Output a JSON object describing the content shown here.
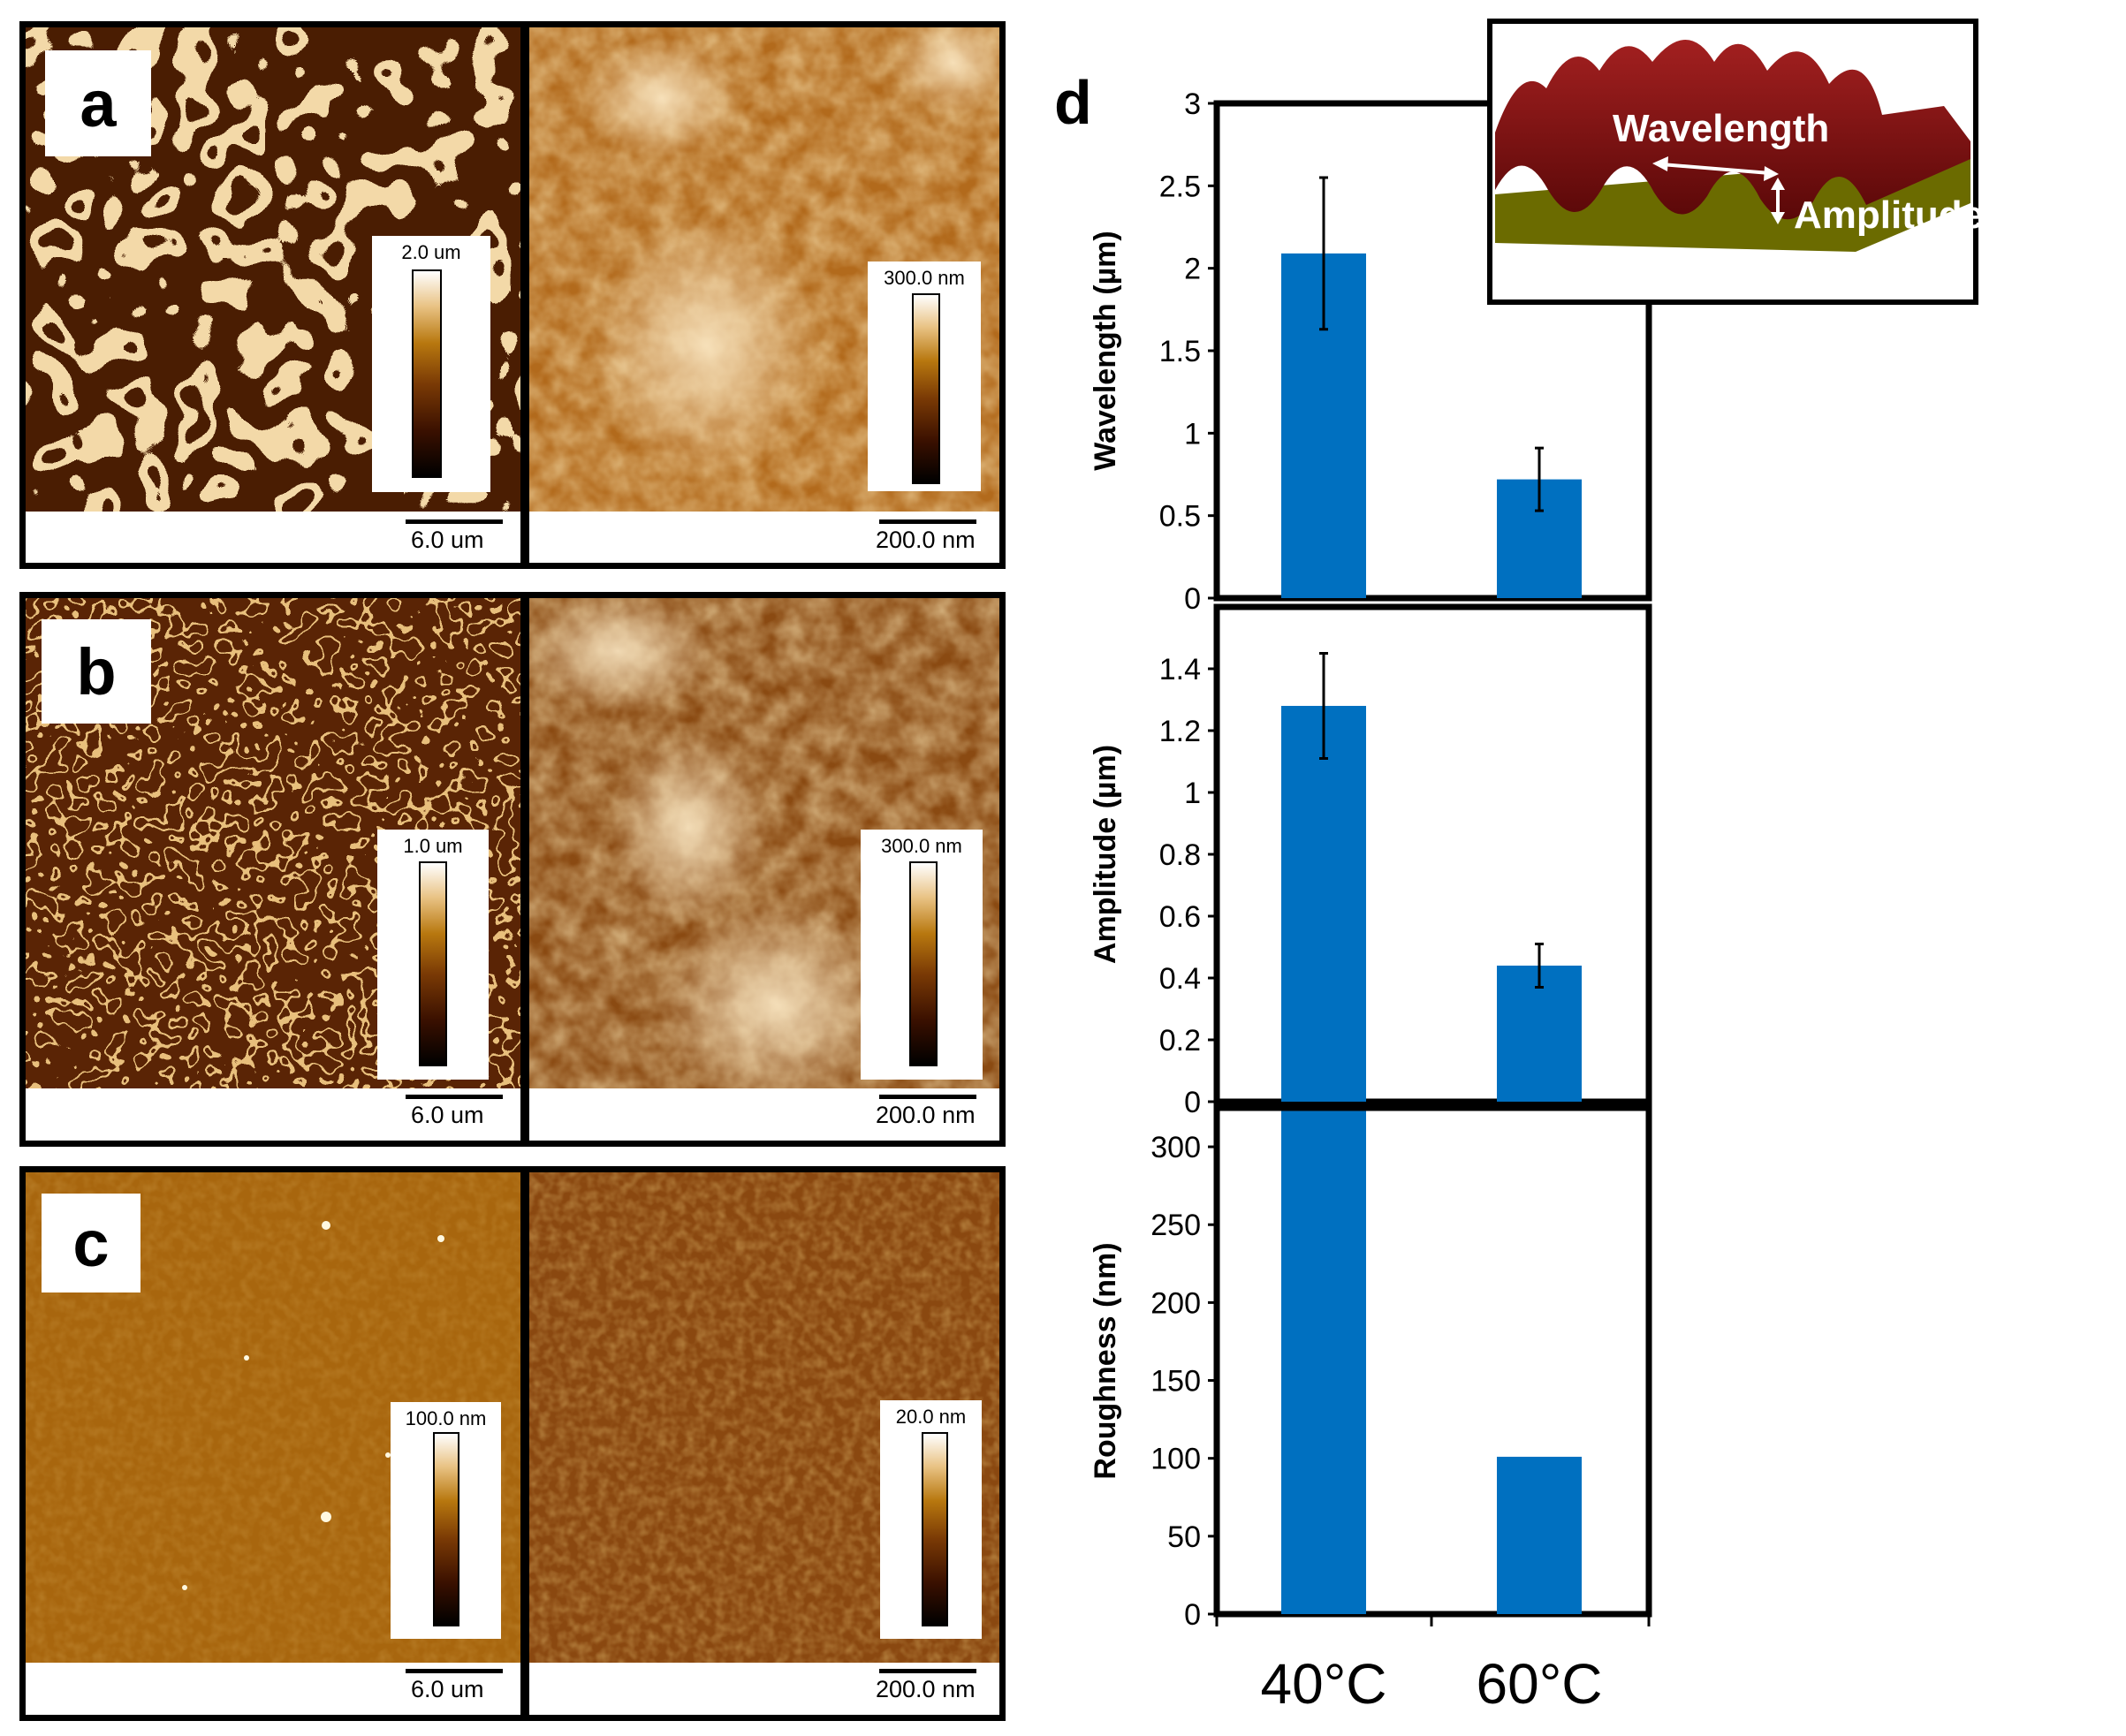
{
  "figure": {
    "rows": [
      {
        "id": "a",
        "letter": "a",
        "left_colorbar": "2.0 um",
        "left_scale": "6.0 um",
        "right_colorbar": "300.0 nm",
        "right_scale": "200.0 nm"
      },
      {
        "id": "b",
        "letter": "b",
        "left_colorbar": "1.0 um",
        "left_scale": "6.0 um",
        "right_colorbar": "300.0 nm",
        "right_scale": "200.0 nm"
      },
      {
        "id": "c",
        "letter": "c",
        "left_colorbar": "100.0 nm",
        "left_scale": "6.0 um",
        "right_colorbar": "20.0 nm",
        "right_scale": "200.0 nm"
      }
    ],
    "panel_d_letter": "d",
    "inset": {
      "wavelength_label": "Wavelength",
      "amplitude_label": "Amplitude"
    }
  },
  "chart_data": [
    {
      "type": "bar",
      "categories": [
        "40°C",
        "60°C"
      ],
      "values": [
        2.09,
        0.72
      ],
      "errors": [
        0.46,
        0.19
      ],
      "ylabel": "Wavelength (µm)",
      "ylim": [
        0,
        3
      ],
      "yticks": [
        "0",
        "0.5",
        "1",
        "1.5",
        "2",
        "2.5",
        "3"
      ],
      "color": "#0070c0"
    },
    {
      "type": "bar",
      "categories": [
        "40°C",
        "60°C"
      ],
      "values": [
        1.28,
        0.44
      ],
      "errors": [
        0.17,
        0.07
      ],
      "ylabel": "Amplitude (µm)",
      "ylim": [
        0,
        1.6
      ],
      "yticks": [
        "0",
        "0.2",
        "0.4",
        "0.6",
        "0.8",
        "1",
        "1.2",
        "1.4"
      ],
      "color": "#0070c0"
    },
    {
      "type": "bar",
      "categories": [
        "40°C",
        "60°C"
      ],
      "values": [
        323,
        101
      ],
      "ylabel": "Roughness (nm)",
      "ylim": [
        0,
        325
      ],
      "yticks": [
        "0",
        "50",
        "100",
        "150",
        "200",
        "250",
        "300"
      ],
      "color": "#0070c0"
    }
  ]
}
